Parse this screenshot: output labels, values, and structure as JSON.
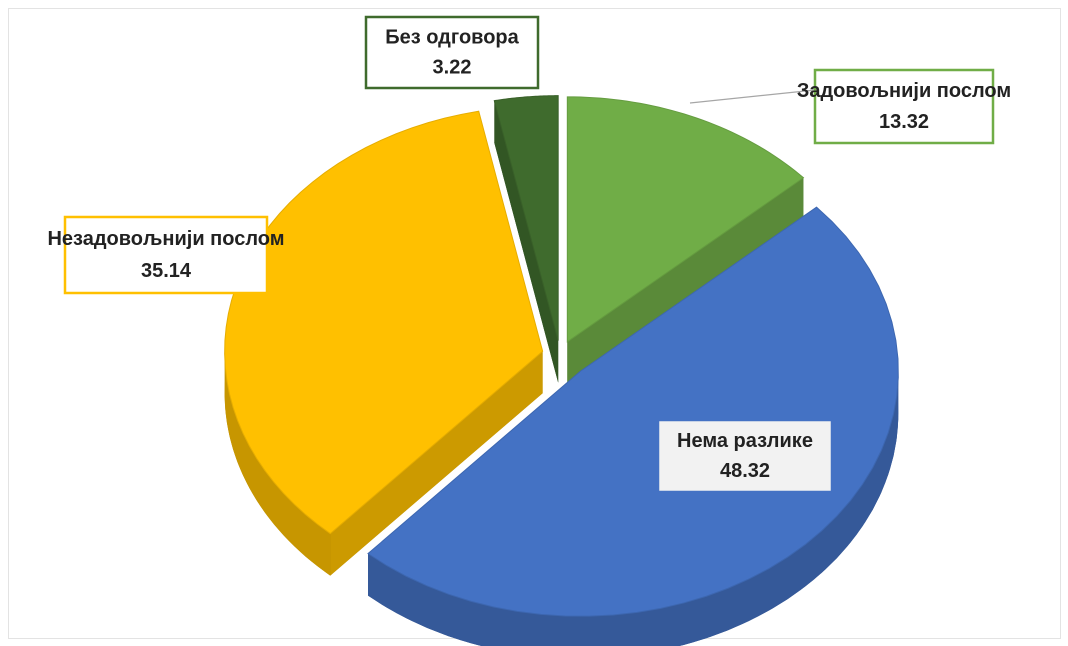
{
  "chart_data": {
    "type": "pie",
    "categories": [
      "Задовољнији послом",
      "Нема разлике",
      "Незадовољнији послом",
      "Без одговора"
    ],
    "values": [
      13.32,
      48.32,
      35.14,
      3.22
    ],
    "colors": [
      "#70ad47",
      "#4472c4",
      "#ffc000",
      "#3f6b2d"
    ]
  }
}
